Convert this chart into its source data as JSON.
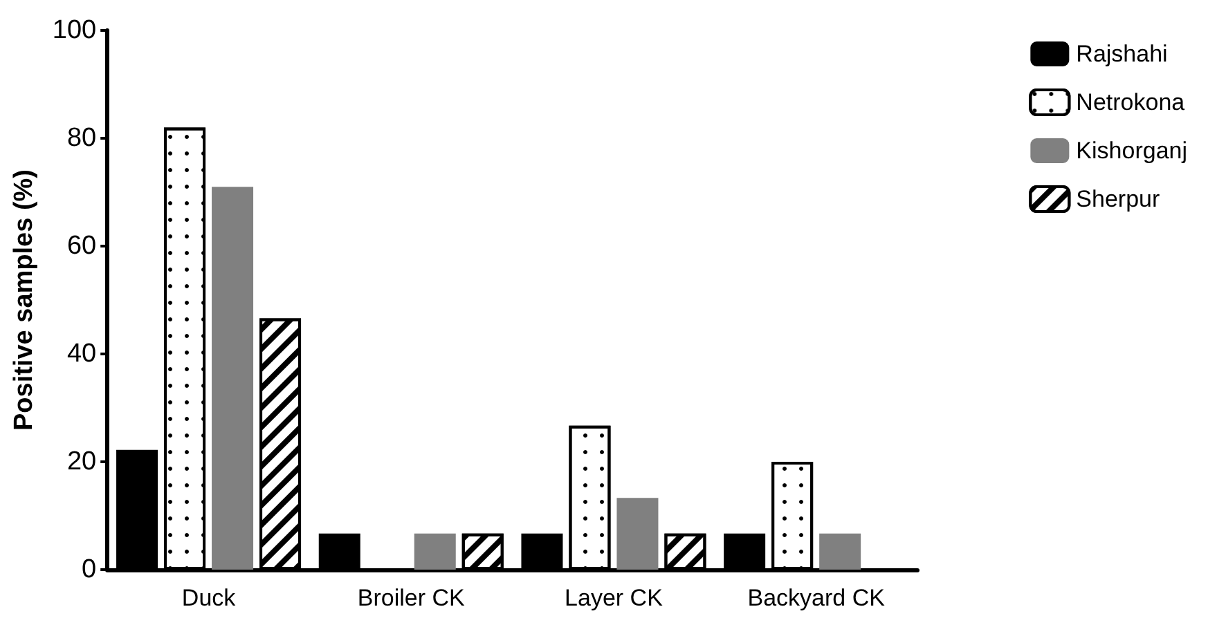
{
  "chart_data": {
    "type": "bar",
    "ylabel": "Positive samples (%)",
    "categories": [
      "Duck",
      "Broiler CK",
      "Layer CK",
      "Backyard CK"
    ],
    "series": [
      {
        "name": "Rajshahi",
        "color": "#000000",
        "values": [
          22.2,
          6.7,
          6.7,
          6.7
        ]
      },
      {
        "name": "Netrokona",
        "color": "#ffffff",
        "values": [
          82,
          null,
          26.7,
          20
        ]
      },
      {
        "name": "Kishorganj",
        "color": "#808080",
        "values": [
          71,
          6.7,
          13.3,
          6.7
        ]
      },
      {
        "name": "Sherpur",
        "color": "#ffffff",
        "values": [
          46.6,
          6.7,
          6.7,
          null
        ]
      }
    ],
    "ylim": [
      0,
      100
    ],
    "yticks": [
      0,
      20,
      40,
      60,
      80,
      100
    ],
    "grid": false,
    "legend": "top right"
  }
}
